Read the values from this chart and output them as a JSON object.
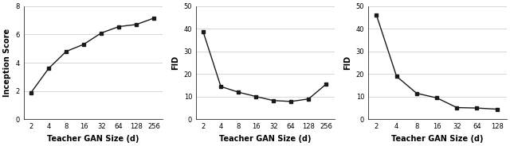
{
  "plot1": {
    "x": [
      2,
      4,
      8,
      16,
      32,
      64,
      128,
      256
    ],
    "y": [
      1.9,
      3.6,
      4.8,
      5.3,
      6.1,
      6.55,
      6.7,
      7.15
    ],
    "xlabel": "Teacher GAN Size (d)",
    "ylabel": "Inception Score",
    "ylim": [
      0,
      8
    ],
    "yticks": [
      0,
      2,
      4,
      6,
      8
    ],
    "xticks": [
      2,
      4,
      8,
      16,
      32,
      64,
      128,
      256
    ]
  },
  "plot2": {
    "x": [
      2,
      4,
      8,
      16,
      32,
      64,
      128,
      256
    ],
    "y": [
      38.5,
      14.5,
      12.0,
      10.1,
      8.3,
      7.9,
      9.0,
      15.5
    ],
    "xlabel": "Teacher GAN Size (d)",
    "ylabel": "FID",
    "ylim": [
      0,
      50
    ],
    "yticks": [
      0,
      10,
      20,
      30,
      40,
      50
    ],
    "xticks": [
      2,
      4,
      8,
      16,
      32,
      64,
      128,
      256
    ]
  },
  "plot3": {
    "x": [
      2,
      4,
      8,
      16,
      32,
      64,
      128
    ],
    "y": [
      46.0,
      19.0,
      11.5,
      9.5,
      5.2,
      5.0,
      4.5
    ],
    "xlabel": "Teacher GAN Size (d)",
    "ylabel": "FID",
    "ylim": [
      0,
      50
    ],
    "yticks": [
      0,
      10,
      20,
      30,
      40,
      50
    ],
    "xticks": [
      2,
      4,
      8,
      16,
      32,
      64,
      128
    ]
  },
  "line_color": "#1a1a1a",
  "marker": "s",
  "markersize": 2.8,
  "linewidth": 1.0,
  "grid_color": "#c8c8c8",
  "tick_fontsize": 6,
  "label_fontsize": 7,
  "label_fontweight": "bold"
}
